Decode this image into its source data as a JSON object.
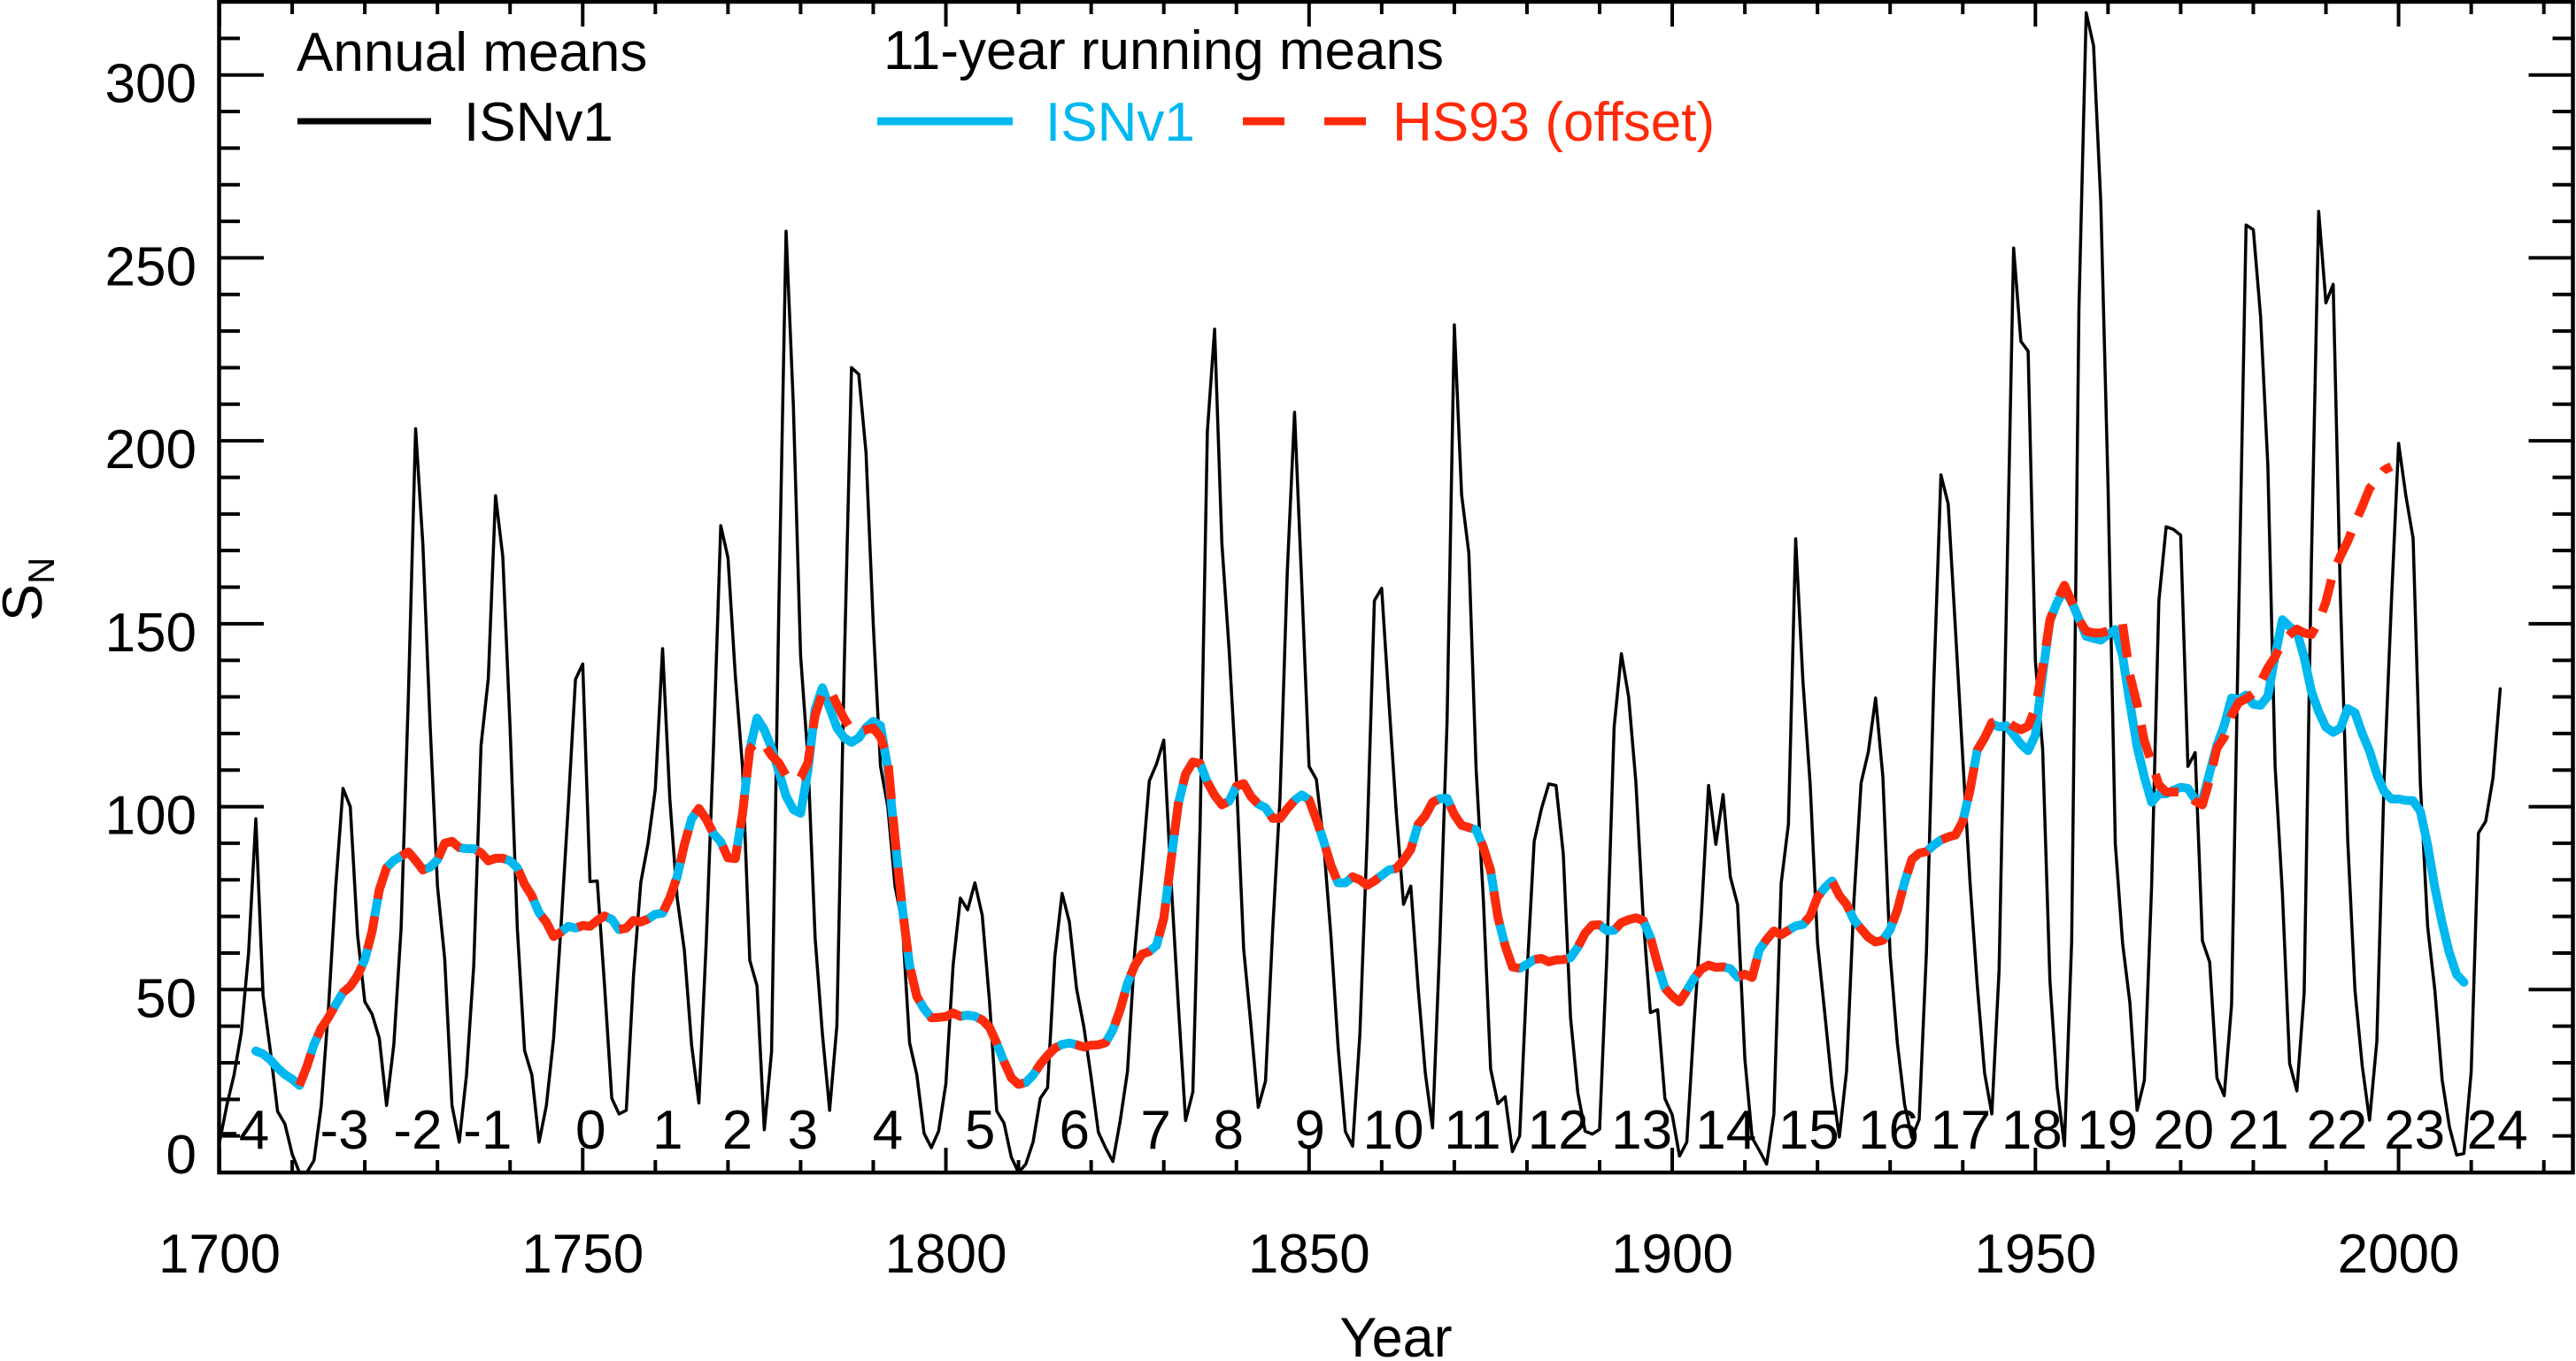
{
  "chart_data": {
    "type": "line",
    "title": "",
    "xlabel": "Year",
    "ylabel": "S",
    "ylabel_subscript": "N",
    "xlim": [
      1700,
      2024
    ],
    "ylim": [
      0,
      320
    ],
    "grid": false,
    "legend_placement": "top-left",
    "x_ticks": [
      1700,
      1750,
      1800,
      1850,
      1900,
      1950,
      2000
    ],
    "x_tick_labels": [
      "1700",
      "1750",
      "1800",
      "1850",
      "1900",
      "1950",
      "2000"
    ],
    "x_minor_step": 10,
    "y_ticks": [
      0,
      50,
      100,
      150,
      200,
      250,
      300
    ],
    "y_tick_labels": [
      "0",
      "50",
      "100",
      "150",
      "200",
      "250",
      "300"
    ],
    "y_minor_step": 10,
    "legend": {
      "annual_header": "Annual means",
      "annual_isn_label": "ISNv1",
      "running_header": "11-year running means",
      "running_isn_label": "ISNv1",
      "running_hs93_label": "HS93 (offset)"
    },
    "colors": {
      "annual": "#000000",
      "running_isn": "#00b8f0",
      "running_hs93": "#ff2a0a"
    },
    "cycle_labels": [
      {
        "label": "-4",
        "x": 1703.5
      },
      {
        "label": "-3",
        "x": 1717.2
      },
      {
        "label": "-2",
        "x": 1727.3
      },
      {
        "label": "-1",
        "x": 1736.9
      },
      {
        "label": "0",
        "x": 1751.1
      },
      {
        "label": "1",
        "x": 1761.7
      },
      {
        "label": "2",
        "x": 1771.3
      },
      {
        "label": "3",
        "x": 1780.3
      },
      {
        "label": "4",
        "x": 1792.0
      },
      {
        "label": "5",
        "x": 1804.7
      },
      {
        "label": "6",
        "x": 1817.7
      },
      {
        "label": "7",
        "x": 1828.9
      },
      {
        "label": "8",
        "x": 1838.9
      },
      {
        "label": "9",
        "x": 1850.1
      },
      {
        "label": "10",
        "x": 1861.6
      },
      {
        "label": "11",
        "x": 1872.5
      },
      {
        "label": "12",
        "x": 1884.3
      },
      {
        "label": "13",
        "x": 1895.8
      },
      {
        "label": "14",
        "x": 1907.4
      },
      {
        "label": "15",
        "x": 1918.8
      },
      {
        "label": "16",
        "x": 1929.8
      },
      {
        "label": "17",
        "x": 1939.7
      },
      {
        "label": "18",
        "x": 1949.5
      },
      {
        "label": "19",
        "x": 1959.9
      },
      {
        "label": "20",
        "x": 1970.4
      },
      {
        "label": "21",
        "x": 1980.7
      },
      {
        "label": "22",
        "x": 1991.5
      },
      {
        "label": "23",
        "x": 2002.2
      },
      {
        "label": "24",
        "x": 2013.6
      }
    ],
    "series": [
      {
        "id": "annual-isnv1",
        "name": "ISNv1",
        "group": "Annual means",
        "style": "solid-thin",
        "color_key": "annual",
        "start_year": 1700,
        "values": [
          8.3,
          18.3,
          26.7,
          38.3,
          60.0,
          96.7,
          48.3,
          33.3,
          16.7,
          13.3,
          5.0,
          0.0,
          0.0,
          3.3,
          18.3,
          45.0,
          78.3,
          105.0,
          100.0,
          65.0,
          46.7,
          43.3,
          36.7,
          18.3,
          35.0,
          66.7,
          130.0,
          203.3,
          171.7,
          121.7,
          78.3,
          58.3,
          18.3,
          8.3,
          26.7,
          56.7,
          116.7,
          135.0,
          185.0,
          168.3,
          121.7,
          66.7,
          33.3,
          26.7,
          8.3,
          18.3,
          36.7,
          66.7,
          100.0,
          134.8,
          139.0,
          79.5,
          79.7,
          51.2,
          20.3,
          16.0,
          17.0,
          54.0,
          79.3,
          90.0,
          104.8,
          143.2,
          102.0,
          75.2,
          60.7,
          34.8,
          19.0,
          63.0,
          116.3,
          176.8,
          168.0,
          136.0,
          110.8,
          58.0,
          51.0,
          11.7,
          33.0,
          154.2,
          257.3,
          209.8,
          141.3,
          113.5,
          64.2,
          38.0,
          17.0,
          40.2,
          138.2,
          220.0,
          218.2,
          196.8,
          149.8,
          111.0,
          100.0,
          78.2,
          68.3,
          35.5,
          26.7,
          10.7,
          6.8,
          11.3,
          24.2,
          56.7,
          75.0,
          71.8,
          79.2,
          70.3,
          46.8,
          16.8,
          13.5,
          4.2,
          0.0,
          2.3,
          8.3,
          20.3,
          23.2,
          59.0,
          76.3,
          68.5,
          50.2,
          39.8,
          26.0,
          11.0,
          6.7,
          3.0,
          14.2,
          27.7,
          60.5,
          82.7,
          107.0,
          111.7,
          118.2,
          79.7,
          45.8,
          14.2,
          22.0,
          94.8,
          202.5,
          230.5,
          172.0,
          142.8,
          107.7,
          61.2,
          40.3,
          17.8,
          25.0,
          66.8,
          102.5,
          164.2,
          207.8,
          160.5,
          111.0,
          107.5,
          90.2,
          65.0,
          34.3,
          11.2,
          7.2,
          37.8,
          91.3,
          156.3,
          159.7,
          128.7,
          98.5,
          73.3,
          78.3,
          50.8,
          27.2,
          12.2,
          62.7,
          123.3,
          231.7,
          185.3,
          169.3,
          110.3,
          74.5,
          28.3,
          18.8,
          20.7,
          5.7,
          10.0,
          53.8,
          90.5,
          99.5,
          106.2,
          105.8,
          87.0,
          42.3,
          21.8,
          11.3,
          10.5,
          11.8,
          59.3,
          121.7,
          141.8,
          130.0,
          106.7,
          69.7,
          43.7,
          44.5,
          20.2,
          15.8,
          4.5,
          8.3,
          40.7,
          70.0,
          105.8,
          89.7,
          103.3,
          80.8,
          73.2,
          31.0,
          9.5,
          6.0,
          2.3,
          16.0,
          79.0,
          95.2,
          173.2,
          134.3,
          106.0,
          62.7,
          43.5,
          23.7,
          9.7,
          27.8,
          73.8,
          106.5,
          115.0,
          129.7,
          108.2,
          59.5,
          35.3,
          18.5,
          9.5,
          14.5,
          60.2,
          132.8,
          190.7,
          182.7,
          148.0,
          113.0,
          79.2,
          51.0,
          27.2,
          16.0,
          55.3,
          154.3,
          252.7,
          227.2,
          224.5,
          139.8,
          115.7,
          52.5,
          23.2,
          7.3,
          63.3,
          236.2,
          317.0,
          308.0,
          265.0,
          187.2,
          89.8,
          62.7,
          46.5,
          17.0,
          25.2,
          78.3,
          156.3,
          176.5,
          175.8,
          174.2,
          111.0,
          114.8,
          63.3,
          57.5,
          25.8,
          21.0,
          45.8,
          154.2,
          259.0,
          257.7,
          234.0,
          193.2,
          111.0,
          76.5,
          29.8,
          22.3,
          49.0,
          167.0,
          262.7,
          237.7,
          242.8,
          157.2,
          91.0,
          49.8,
          29.2,
          14.3,
          35.8,
          107.2,
          155.5,
          199.3,
          185.0,
          173.3,
          106.2,
          67.3,
          49.7,
          25.3,
          12.5,
          4.8,
          5.2,
          27.5,
          92.8,
          96.0,
          107.8,
          132.2
        ]
      },
      {
        "id": "running-mean-isnv1",
        "name": "ISNv1",
        "group": "11-year running means",
        "style": "solid-thick",
        "color_key": "running_isn",
        "start_year": 1705,
        "values": [
          33.2,
          32.4,
          30.8,
          28.6,
          26.8,
          25.5,
          23.8,
          28.9,
          35.0,
          39.4,
          42.4,
          45.9,
          49.2,
          50.9,
          53.8,
          58.2,
          65.9,
          77.3,
          83.3,
          85.3,
          86.5,
          87.6,
          85.3,
          82.7,
          83.5,
          85.5,
          90.0,
          90.5,
          88.8,
          88.5,
          88.5,
          87.4,
          85.2,
          85.9,
          85.9,
          85.2,
          83.3,
          78.8,
          75.6,
          71.0,
          68.4,
          64.5,
          65.7,
          67.3,
          66.8,
          67.5,
          67.3,
          68.9,
          70.1,
          69.2,
          66.4,
          66.8,
          68.9,
          68.5,
          69.3,
          70.6,
          70.9,
          75.1,
          80.8,
          89.6,
          96.7,
          99.5,
          96.6,
          92.6,
          90.4,
          86.0,
          85.8,
          98.1,
          115.7,
          124.2,
          121.0,
          116.1,
          109.5,
          102.9,
          99.2,
          98.2,
          109.7,
          126.7,
          132.5,
          127.0,
          121.6,
          118.8,
          117.6,
          118.8,
          121.6,
          123.3,
          122.1,
          110.5,
          91.1,
          72.3,
          56.6,
          48.1,
          44.8,
          42.3,
          42.4,
          42.6,
          43.6,
          42.7,
          43.0,
          42.7,
          41.7,
          39.7,
          35.3,
          30.3,
          25.9,
          24.1,
          24.6,
          26.6,
          29.6,
          32.0,
          34.0,
          35.0,
          35.4,
          34.9,
          34.3,
          34.8,
          34.9,
          35.5,
          39.0,
          44.6,
          51.7,
          56.6,
          59.7,
          60.4,
          62.1,
          69.5,
          85.4,
          100.8,
          108.9,
          112.2,
          111.8,
          106.7,
          103.1,
          100.5,
          101.5,
          105.6,
          106.3,
          102.8,
          100.7,
          99.7,
          96.8,
          96.8,
          99.4,
          101.7,
          103.2,
          101.9,
          96.5,
          90.6,
          84.0,
          79.2,
          79.2,
          80.8,
          80.0,
          78.5,
          79.7,
          81.2,
          82.7,
          83.1,
          85.4,
          88.3,
          95.1,
          97.5,
          101.2,
          102.2,
          102.3,
          97.8,
          94.9,
          94.3,
          93.7,
          88.9,
          82.6,
          69.8,
          62.0,
          56.2,
          55.8,
          56.9,
          58.2,
          58.5,
          57.6,
          58.1,
          58.2,
          58.7,
          61.6,
          65.4,
          67.6,
          67.7,
          66.1,
          66.2,
          68.3,
          69.1,
          69.6,
          68.9,
          64.3,
          56.9,
          50.4,
          48.2,
          46.6,
          49.7,
          53.1,
          55.6,
          56.7,
          56.1,
          56.2,
          55.7,
          53.4,
          54.2,
          53.3,
          60.9,
          63.7,
          66.0,
          65.0,
          66.2,
          67.4,
          67.8,
          70.1,
          75.3,
          77.8,
          79.7,
          75.7,
          73.3,
          69.1,
          66.6,
          64.3,
          63.0,
          63.5,
          66.4,
          71.8,
          79.4,
          85.6,
          87.3,
          87.7,
          89.5,
          90.9,
          91.7,
          92.3,
          96.0,
          104.6,
          115.5,
          118.8,
          122.6,
          121.8,
          122.1,
          119.7,
          117.1,
          115.3,
          119.6,
          136.1,
          150.8,
          155.9,
          159.3,
          155.9,
          151.4,
          146.6,
          146.0,
          145.5,
          147.1,
          148.4,
          141.2,
          128.4,
          116.4,
          108.1,
          101.2,
          103.5,
          103.5,
          104.5,
          105.3,
          105.0,
          102.0,
          101.8,
          109.3,
          116.8,
          122.2,
          129.7,
          129.3,
          130.5,
          128.0,
          127.7,
          130.2,
          141.2,
          151.1,
          149.2,
          147.8,
          140.8,
          131.5,
          126.0,
          121.7,
          120.3,
          121.5,
          126.8,
          125.7,
          120.0,
          115.2,
          108.9,
          104.2,
          102.1,
          102.1,
          101.7,
          101.6,
          98.7,
          89.5,
          77.8,
          68.2,
          60.0,
          54.1,
          52.0
        ]
      },
      {
        "id": "running-mean-hs93-offset",
        "name": "HS93 (offset)",
        "group": "11-year running means",
        "style": "dashed-thick",
        "color_key": "running_hs93",
        "start_year": 1711,
        "values": [
          23.8,
          28.9,
          35.0,
          39.4,
          42.4,
          45.9,
          49.2,
          50.9,
          53.8,
          58.2,
          65.9,
          77.3,
          83.3,
          85.3,
          86.5,
          87.6,
          85.3,
          82.7,
          83.5,
          85.5,
          90.0,
          90.5,
          88.8,
          88.5,
          88.5,
          87.4,
          85.2,
          85.9,
          85.9,
          85.2,
          83.3,
          78.8,
          75.6,
          71.0,
          68.4,
          64.5,
          65.7,
          67.3,
          66.8,
          67.5,
          67.3,
          68.9,
          70.1,
          69.2,
          66.4,
          66.8,
          68.9,
          68.5,
          69.3,
          70.6,
          70.9,
          75.1,
          80.8,
          89.6,
          96.7,
          99.5,
          96.6,
          92.6,
          90.4,
          86.0,
          85.8,
          98.1,
          115.7,
          118.0,
          117.0,
          114.0,
          112.0,
          108.5,
          107.0,
          108.0,
          112.0,
          125.0,
          131.0,
          132.0,
          128.0,
          124.0,
          121.0,
          120.5,
          121.0,
          121.5,
          119.0,
          113.0,
          91.1,
          72.3,
          56.6,
          48.1,
          44.8,
          42.3,
          42.4,
          42.6,
          43.6,
          42.7,
          43.0,
          42.7,
          41.7,
          39.7,
          35.3,
          30.3,
          25.9,
          24.1,
          24.6,
          26.6,
          29.6,
          32.0,
          34.0,
          35.0,
          35.4,
          34.9,
          34.3,
          34.8,
          34.9,
          35.5,
          39.0,
          44.6,
          51.7,
          56.6,
          59.7,
          60.4,
          62.1,
          69.5,
          85.4,
          100.8,
          108.9,
          112.2,
          111.8,
          106.7,
          103.1,
          100.5,
          101.5,
          105.6,
          106.3,
          102.8,
          100.7,
          99.7,
          96.8,
          96.8,
          99.4,
          101.7,
          103.2,
          101.9,
          96.5,
          90.6,
          84.0,
          79.2,
          79.2,
          80.8,
          80.0,
          78.5,
          79.7,
          81.2,
          82.7,
          83.1,
          85.4,
          88.3,
          95.1,
          97.5,
          101.2,
          102.2,
          102.3,
          97.8,
          94.9,
          94.3,
          93.7,
          88.9,
          82.6,
          69.8,
          62.0,
          56.2,
          55.8,
          56.9,
          58.2,
          58.5,
          57.6,
          58.1,
          58.2,
          58.7,
          61.6,
          65.4,
          67.6,
          67.7,
          66.1,
          66.2,
          68.3,
          69.1,
          69.6,
          68.9,
          64.3,
          56.9,
          50.4,
          48.2,
          46.6,
          49.7,
          53.1,
          55.6,
          56.7,
          56.1,
          56.2,
          55.7,
          53.4,
          54.2,
          53.3,
          60.9,
          63.7,
          66.0,
          65.0,
          66.2,
          67.4,
          67.8,
          70.1,
          75.3,
          77.8,
          79.7,
          75.7,
          73.3,
          69.1,
          66.6,
          64.3,
          63.0,
          63.5,
          66.4,
          71.8,
          79.4,
          85.6,
          87.3,
          87.7,
          89.5,
          90.9,
          91.7,
          92.3,
          96.0,
          104.6,
          115.5,
          118.8,
          123.0,
          123.5,
          123.5,
          122.0,
          121.0,
          122.0,
          127.0,
          138.0,
          151.0,
          156.5,
          160.5,
          156.0,
          151.0,
          148.0,
          147.5,
          147.5,
          148.0,
          149.5,
          150.0,
          136.0,
          128.0,
          118.0,
          112.0,
          106.0,
          104.0,
          104.0,
          104.0,
          103.5,
          101.5,
          100.5,
          107.5,
          116.0,
          119.0,
          125.0,
          128.5,
          129.5,
          131.0,
          134.0,
          138.0,
          141.0,
          145.0,
          147.0,
          148.5,
          147.5,
          147.0,
          150.5,
          156.0,
          164.0,
          168.5,
          172.5,
          177.5,
          182.0,
          187.0,
          189.5,
          192.0,
          193.0
        ]
      }
    ]
  }
}
